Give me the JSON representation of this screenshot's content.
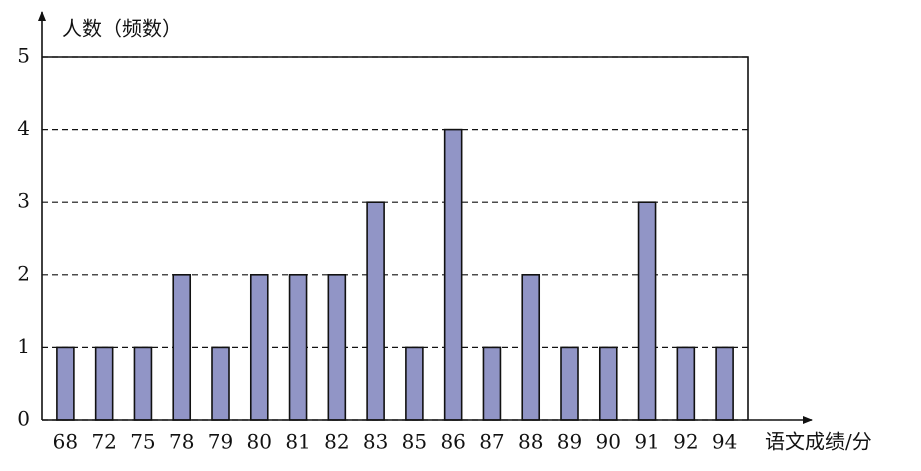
{
  "chart_data": {
    "type": "bar",
    "y_label": "人数（频数）",
    "x_label": "语文成绩/分",
    "categories": [
      "68",
      "72",
      "75",
      "78",
      "79",
      "80",
      "81",
      "82",
      "83",
      "85",
      "86",
      "87",
      "88",
      "89",
      "90",
      "91",
      "92",
      "94"
    ],
    "values": [
      1,
      1,
      1,
      2,
      1,
      2,
      2,
      2,
      3,
      1,
      4,
      1,
      2,
      1,
      1,
      3,
      1,
      1
    ],
    "color": "#9195c6",
    "ylim": [
      0,
      5
    ],
    "yticks": [
      0,
      1,
      2,
      3,
      4,
      5
    ],
    "grid": true
  }
}
